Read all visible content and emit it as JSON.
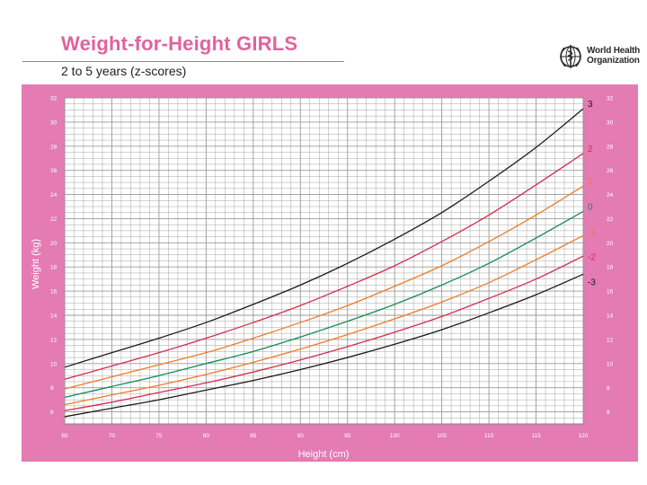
{
  "header": {
    "title": "Weight-for-Height GIRLS",
    "subtitle": "2 to 5 years (z-scores)"
  },
  "logo": {
    "line1": "World Health",
    "line2": "Organization",
    "icon": "who-emblem-icon"
  },
  "colors": {
    "brand_pink": "#e0639e",
    "panel_pink": "#e47bb3",
    "grid": "#9a9a9a",
    "z3": "#1a1a1a",
    "z2": "#d42d4e",
    "z1": "#ef7c22",
    "z0": "#138a5b",
    "zm1": "#ef7c22",
    "zm2": "#d42d4e",
    "zm3": "#1a1a1a"
  },
  "chart_data": {
    "type": "line",
    "xlabel": "Height (cm)",
    "ylabel": "Weight (kg)",
    "xlim": [
      65,
      120
    ],
    "ylim": [
      5,
      32
    ],
    "x_ticks": [
      65,
      70,
      75,
      80,
      85,
      90,
      95,
      100,
      105,
      110,
      115,
      120
    ],
    "y_ticks": [
      6,
      8,
      10,
      12,
      14,
      16,
      18,
      20,
      22,
      24,
      26,
      28,
      30,
      32
    ],
    "x": [
      65,
      70,
      75,
      80,
      85,
      90,
      95,
      100,
      105,
      110,
      115,
      120
    ],
    "series": [
      {
        "name": "3",
        "color": "#1a1a1a",
        "values": [
          9.7,
          10.9,
          12.1,
          13.4,
          14.9,
          16.5,
          18.3,
          20.3,
          22.5,
          25.1,
          27.9,
          31.1
        ]
      },
      {
        "name": "2",
        "color": "#d42d4e",
        "values": [
          8.7,
          9.8,
          10.9,
          12.1,
          13.4,
          14.8,
          16.4,
          18.1,
          20.1,
          22.3,
          24.8,
          27.4
        ]
      },
      {
        "name": "1",
        "color": "#ef7c22",
        "values": [
          7.9,
          8.9,
          9.9,
          10.9,
          12.1,
          13.4,
          14.8,
          16.4,
          18.1,
          20.1,
          22.3,
          24.7
        ]
      },
      {
        "name": "0",
        "color": "#138a5b",
        "values": [
          7.2,
          8.1,
          9.0,
          10.0,
          11.0,
          12.2,
          13.5,
          14.9,
          16.5,
          18.3,
          20.4,
          22.6
        ]
      },
      {
        "name": "-1",
        "color": "#ef7c22",
        "values": [
          6.6,
          7.4,
          8.2,
          9.1,
          10.1,
          11.2,
          12.4,
          13.7,
          15.1,
          16.7,
          18.6,
          20.6
        ]
      },
      {
        "name": "-2",
        "color": "#d42d4e",
        "values": [
          6.1,
          6.8,
          7.6,
          8.4,
          9.3,
          10.3,
          11.4,
          12.6,
          13.9,
          15.4,
          17.0,
          18.9
        ]
      },
      {
        "name": "-3",
        "color": "#1a1a1a",
        "values": [
          5.6,
          6.3,
          7.0,
          7.8,
          8.6,
          9.5,
          10.5,
          11.6,
          12.8,
          14.2,
          15.7,
          17.4
        ]
      }
    ],
    "grid": true,
    "legend": "right end of lines"
  }
}
